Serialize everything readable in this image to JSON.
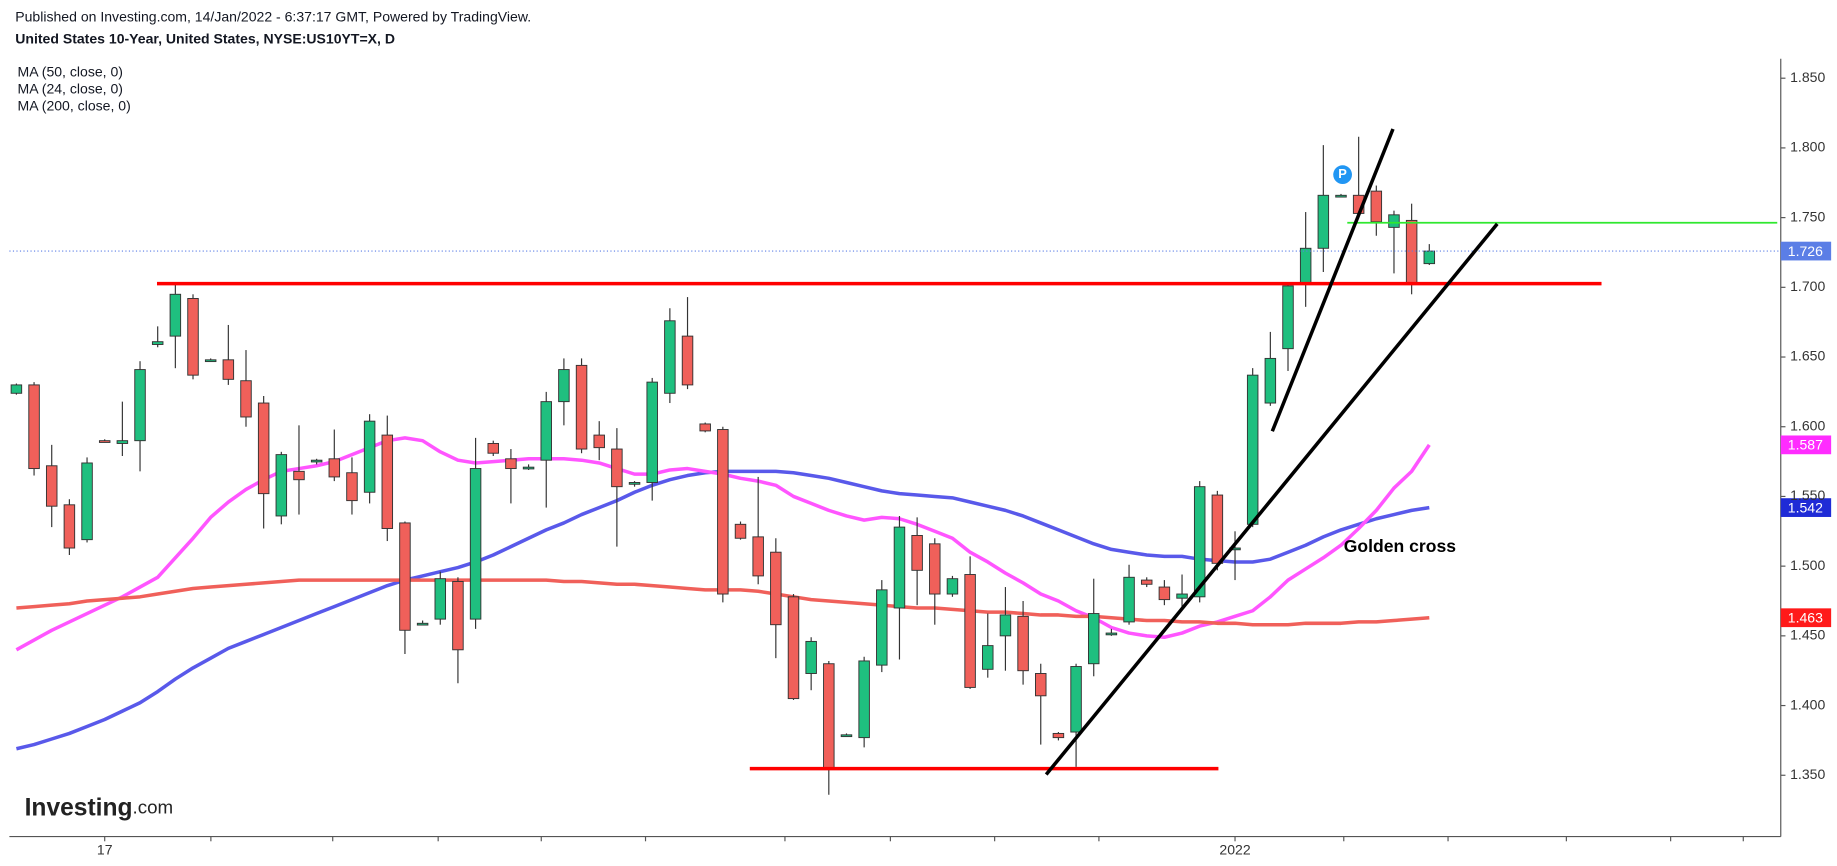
{
  "chart_data": {
    "type": "candlestick",
    "title": "United States 10-Year, United States, NYSE:US10YT=X, D",
    "subtitle": "Published on Investing.com, 14/Jan/2022 - 6:37:17 GMT, Powered by TradingView.",
    "categories": [
      null,
      null,
      null,
      null,
      null,
      "17",
      null,
      null,
      null,
      null,
      null,
      null,
      null,
      null,
      null,
      null,
      null,
      null,
      null,
      null,
      null,
      null,
      null,
      null,
      null,
      null,
      null,
      null,
      null,
      null,
      null,
      null,
      null,
      null,
      null,
      null,
      null,
      null,
      null,
      null,
      null,
      null,
      null,
      null,
      null,
      null,
      null,
      null,
      null,
      null,
      null,
      null,
      null,
      null,
      null,
      null,
      null,
      null,
      null,
      null,
      null,
      null,
      null,
      null,
      null,
      null,
      null,
      null,
      null,
      "2022",
      null,
      null,
      null,
      null,
      null,
      null,
      null,
      null,
      null,
      null,
      null
    ],
    "candles": {
      "open": [
        1.624,
        1.63,
        1.572,
        1.544,
        1.519,
        1.59,
        1.588,
        1.59,
        1.659,
        1.665,
        1.692,
        1.648,
        1.648,
        1.633,
        1.617,
        1.536,
        1.568,
        1.576,
        1.577,
        1.567,
        1.553,
        1.594,
        1.531,
        1.459,
        1.462,
        1.489,
        1.462,
        1.588,
        1.577,
        1.571,
        1.576,
        1.618,
        1.644,
        1.594,
        1.584,
        1.56,
        1.56,
        1.624,
        1.665,
        1.602,
        1.598,
        1.53,
        1.521,
        1.51,
        1.478,
        1.423,
        1.43,
        1.379,
        1.377,
        1.429,
        1.47,
        1.522,
        1.516,
        1.48,
        1.494,
        1.426,
        1.45,
        1.464,
        1.423,
        1.38,
        1.381,
        1.43,
        1.452,
        1.46,
        1.49,
        1.485,
        1.477,
        1.478,
        1.551,
        1.513,
        1.53,
        1.617,
        1.656,
        1.702,
        1.728,
        1.766,
        1.766,
        1.769,
        1.743,
        1.748,
        1.717
      ],
      "high": [
        1.631,
        1.632,
        1.587,
        1.548,
        1.578,
        1.591,
        1.618,
        1.647,
        1.672,
        1.703,
        1.695,
        1.649,
        1.673,
        1.655,
        1.622,
        1.582,
        1.601,
        1.577,
        1.598,
        1.578,
        1.609,
        1.608,
        1.532,
        1.461,
        1.496,
        1.492,
        1.592,
        1.59,
        1.584,
        1.573,
        1.625,
        1.649,
        1.649,
        1.604,
        1.599,
        1.561,
        1.635,
        1.685,
        1.693,
        1.603,
        1.6,
        1.532,
        1.564,
        1.52,
        1.48,
        1.449,
        1.432,
        1.38,
        1.435,
        1.49,
        1.536,
        1.535,
        1.52,
        1.493,
        1.507,
        1.466,
        1.485,
        1.475,
        1.43,
        1.381,
        1.43,
        1.491,
        1.455,
        1.501,
        1.492,
        1.49,
        1.494,
        1.561,
        1.554,
        1.525,
        1.642,
        1.668,
        1.703,
        1.754,
        1.802,
        1.767,
        1.808,
        1.773,
        1.755,
        1.76,
        1.731
      ],
      "low": [
        1.623,
        1.565,
        1.528,
        1.508,
        1.517,
        1.589,
        1.579,
        1.568,
        1.657,
        1.642,
        1.634,
        1.647,
        1.63,
        1.6,
        1.527,
        1.53,
        1.537,
        1.573,
        1.561,
        1.537,
        1.545,
        1.518,
        1.437,
        1.458,
        1.458,
        1.416,
        1.455,
        1.579,
        1.545,
        1.569,
        1.542,
        1.601,
        1.581,
        1.576,
        1.514,
        1.557,
        1.547,
        1.617,
        1.627,
        1.596,
        1.474,
        1.519,
        1.487,
        1.434,
        1.404,
        1.411,
        1.336,
        1.378,
        1.37,
        1.424,
        1.433,
        1.472,
        1.458,
        1.478,
        1.412,
        1.42,
        1.425,
        1.415,
        1.372,
        1.375,
        1.356,
        1.421,
        1.45,
        1.458,
        1.485,
        1.472,
        1.47,
        1.474,
        1.497,
        1.49,
        1.528,
        1.615,
        1.64,
        1.686,
        1.711,
        1.765,
        1.751,
        1.737,
        1.71,
        1.695,
        1.716
      ],
      "close": [
        1.63,
        1.57,
        1.543,
        1.513,
        1.574,
        1.589,
        1.59,
        1.641,
        1.661,
        1.695,
        1.637,
        1.648,
        1.634,
        1.607,
        1.552,
        1.58,
        1.562,
        1.576,
        1.564,
        1.547,
        1.604,
        1.527,
        1.454,
        1.459,
        1.491,
        1.44,
        1.57,
        1.581,
        1.57,
        1.571,
        1.618,
        1.641,
        1.584,
        1.585,
        1.557,
        1.56,
        1.632,
        1.676,
        1.63,
        1.597,
        1.48,
        1.52,
        1.493,
        1.458,
        1.405,
        1.446,
        1.355,
        1.379,
        1.432,
        1.483,
        1.528,
        1.497,
        1.48,
        1.491,
        1.413,
        1.443,
        1.465,
        1.425,
        1.407,
        1.377,
        1.428,
        1.466,
        1.452,
        1.492,
        1.487,
        1.476,
        1.48,
        1.557,
        1.502,
        1.513,
        1.637,
        1.649,
        1.701,
        1.728,
        1.766,
        1.766,
        1.753,
        1.747,
        1.752,
        1.702,
        1.726
      ]
    },
    "up_color": "#1fbf7f",
    "down_color": "#f0605a",
    "series": [
      {
        "name": "MA (50, close, 0)",
        "color": "#5959ea",
        "values": [
          1.369,
          1.372,
          1.376,
          1.38,
          1.385,
          1.39,
          1.396,
          1.402,
          1.41,
          1.419,
          1.427,
          1.434,
          1.441,
          1.446,
          1.451,
          1.456,
          1.461,
          1.466,
          1.471,
          1.476,
          1.481,
          1.486,
          1.49,
          1.493,
          1.496,
          1.499,
          1.503,
          1.508,
          1.514,
          1.52,
          1.526,
          1.531,
          1.537,
          1.542,
          1.547,
          1.553,
          1.558,
          1.562,
          1.565,
          1.567,
          1.568,
          1.568,
          1.568,
          1.568,
          1.567,
          1.565,
          1.563,
          1.56,
          1.557,
          1.554,
          1.552,
          1.551,
          1.55,
          1.549,
          1.546,
          1.543,
          1.54,
          1.536,
          1.531,
          1.526,
          1.521,
          1.516,
          1.512,
          1.51,
          1.508,
          1.507,
          1.507,
          1.505,
          1.504,
          1.503,
          1.503,
          1.505,
          1.51,
          1.515,
          1.521,
          1.526,
          1.53,
          1.534,
          1.537,
          1.54,
          1.542
        ]
      },
      {
        "name": "MA (24, close, 0)",
        "color": "#ff55ff",
        "values": [
          1.44,
          1.447,
          1.454,
          1.46,
          1.466,
          1.472,
          1.478,
          1.485,
          1.492,
          1.506,
          1.52,
          1.535,
          1.546,
          1.555,
          1.562,
          1.568,
          1.57,
          1.572,
          1.575,
          1.58,
          1.585,
          1.59,
          1.592,
          1.59,
          1.582,
          1.576,
          1.574,
          1.575,
          1.576,
          1.577,
          1.577,
          1.577,
          1.576,
          1.574,
          1.57,
          1.566,
          1.566,
          1.569,
          1.57,
          1.568,
          1.566,
          1.563,
          1.561,
          1.558,
          1.55,
          1.545,
          1.54,
          1.536,
          1.533,
          1.535,
          1.534,
          1.53,
          1.525,
          1.52,
          1.51,
          1.503,
          1.495,
          1.488,
          1.48,
          1.475,
          1.468,
          1.463,
          1.456,
          1.452,
          1.45,
          1.449,
          1.452,
          1.457,
          1.46,
          1.464,
          1.468,
          1.478,
          1.49,
          1.498,
          1.506,
          1.515,
          1.527,
          1.54,
          1.556,
          1.568,
          1.587
        ]
      },
      {
        "name": "MA (200, close, 0)",
        "color": "#f0605a",
        "values": [
          1.47,
          1.471,
          1.472,
          1.473,
          1.475,
          1.476,
          1.477,
          1.478,
          1.48,
          1.482,
          1.484,
          1.485,
          1.486,
          1.487,
          1.488,
          1.489,
          1.49,
          1.49,
          1.49,
          1.49,
          1.49,
          1.49,
          1.49,
          1.49,
          1.49,
          1.49,
          1.49,
          1.49,
          1.49,
          1.49,
          1.49,
          1.489,
          1.489,
          1.488,
          1.487,
          1.487,
          1.486,
          1.485,
          1.484,
          1.483,
          1.483,
          1.483,
          1.482,
          1.48,
          1.478,
          1.476,
          1.475,
          1.474,
          1.473,
          1.472,
          1.471,
          1.47,
          1.47,
          1.469,
          1.468,
          1.467,
          1.467,
          1.466,
          1.465,
          1.465,
          1.464,
          1.464,
          1.463,
          1.462,
          1.461,
          1.461,
          1.46,
          1.46,
          1.459,
          1.459,
          1.458,
          1.458,
          1.458,
          1.459,
          1.459,
          1.459,
          1.46,
          1.46,
          1.461,
          1.462,
          1.463
        ]
      }
    ],
    "price_tags": [
      {
        "value": 1.726,
        "color": "#5b7ee6"
      },
      {
        "value": 1.587,
        "color": "#ff2cff"
      },
      {
        "value": 1.542,
        "color": "#1f2bd6"
      },
      {
        "value": 1.463,
        "color": "#ff1a1a"
      }
    ],
    "ylim": [
      1.306,
      1.864
    ],
    "yticks": [
      {
        "value": 1.35,
        "label": "1.350"
      },
      {
        "value": 1.4,
        "label": "1.400"
      },
      {
        "value": 1.45,
        "label": "1.450"
      },
      {
        "value": 1.5,
        "label": "1.500"
      },
      {
        "value": 1.55,
        "label": "1.550"
      },
      {
        "value": 1.6,
        "label": "1.600"
      },
      {
        "value": 1.65,
        "label": "1.650"
      },
      {
        "value": 1.7,
        "label": "1.700"
      },
      {
        "value": 1.75,
        "label": "1.750"
      },
      {
        "value": 1.8,
        "label": "1.800"
      },
      {
        "value": 1.85,
        "label": "1.850"
      }
    ],
    "annotation": "Golden cross",
    "marker": "P",
    "brand": [
      "Investing",
      ".com"
    ]
  }
}
